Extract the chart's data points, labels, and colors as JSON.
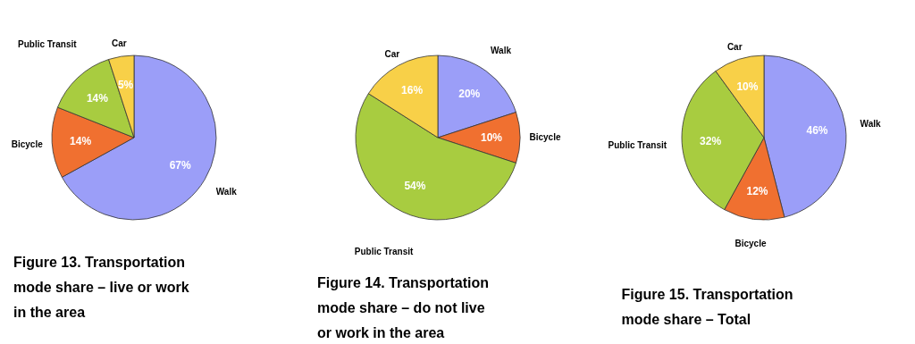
{
  "chart_data": [
    {
      "type": "pie",
      "title": "Figure 13. Transportation mode share – live or work in the area",
      "categories": [
        "Walk",
        "Bicycle",
        "Public Transit",
        "Car"
      ],
      "values": [
        67,
        14,
        14,
        5
      ],
      "colors": [
        "#9b9ef8",
        "#f07030",
        "#a8cc40",
        "#f8d048"
      ],
      "value_labels": [
        "67%",
        "14%",
        "14%",
        "5%"
      ],
      "legend": false
    },
    {
      "type": "pie",
      "title": "Figure 14. Transportation mode share – do not live or work in the area",
      "categories": [
        "Walk",
        "Bicycle",
        "Public Transit",
        "Car"
      ],
      "values": [
        20,
        10,
        54,
        16
      ],
      "colors": [
        "#9b9ef8",
        "#f07030",
        "#a8cc40",
        "#f8d048"
      ],
      "value_labels": [
        "20%",
        "10%",
        "54%",
        "16%"
      ],
      "legend": false
    },
    {
      "type": "pie",
      "title": "Figure 15. Transportation mode share – Total",
      "categories": [
        "Walk",
        "Bicycle",
        "Public Transit",
        "Car"
      ],
      "values": [
        46,
        12,
        32,
        10
      ],
      "colors": [
        "#9b9ef8",
        "#f07030",
        "#a8cc40",
        "#f8d048"
      ],
      "value_labels": [
        "46%",
        "12%",
        "32%",
        "10%"
      ],
      "legend": false
    }
  ]
}
